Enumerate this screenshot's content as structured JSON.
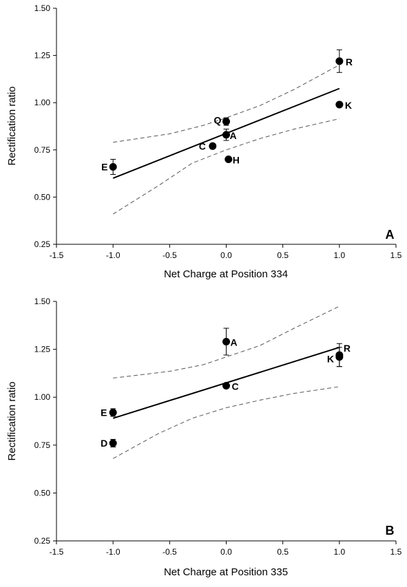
{
  "chart_data": [
    {
      "type": "scatter",
      "panel_label": "A",
      "xlabel": "Net Charge at Position 334",
      "ylabel": "Rectification ratio",
      "xlim": [
        -1.5,
        1.5
      ],
      "ylim": [
        0.25,
        1.5
      ],
      "x_ticks": [
        "-1.5",
        "-1.0",
        "-0.5",
        "0.0",
        "0.5",
        "1.0",
        "1.5"
      ],
      "y_ticks": [
        "0.25",
        "0.50",
        "0.75",
        "1.00",
        "1.25",
        "1.50"
      ],
      "points": [
        {
          "label": "E",
          "x": -1.0,
          "y": 0.66,
          "err": 0.04
        },
        {
          "label": "C",
          "x": -0.12,
          "y": 0.77,
          "err": 0
        },
        {
          "label": "Q",
          "x": 0.0,
          "y": 0.9,
          "err": 0.02
        },
        {
          "label": "A",
          "x": 0.0,
          "y": 0.83,
          "err": 0.03
        },
        {
          "label": "H",
          "x": 0.02,
          "y": 0.7,
          "err": 0
        },
        {
          "label": "K",
          "x": 1.0,
          "y": 0.99,
          "err": 0
        },
        {
          "label": "R",
          "x": 1.0,
          "y": 1.22,
          "err": 0.06
        }
      ],
      "fit_line": [
        [
          -1.0,
          0.6
        ],
        [
          1.0,
          1.075
        ]
      ],
      "ci_upper": [
        [
          -1.0,
          0.79
        ],
        [
          -0.5,
          0.835
        ],
        [
          -0.2,
          0.88
        ],
        [
          0.0,
          0.92
        ],
        [
          0.3,
          0.985
        ],
        [
          0.6,
          1.07
        ],
        [
          1.0,
          1.2
        ]
      ],
      "ci_lower": [
        [
          -1.0,
          0.41
        ],
        [
          -0.6,
          0.56
        ],
        [
          -0.3,
          0.68
        ],
        [
          0.0,
          0.75
        ],
        [
          0.3,
          0.81
        ],
        [
          0.6,
          0.86
        ],
        [
          1.0,
          0.915
        ]
      ],
      "grid": false
    },
    {
      "type": "scatter",
      "panel_label": "B",
      "xlabel": "Net Charge at Position 335",
      "ylabel": "Rectification ratio",
      "xlim": [
        -1.5,
        1.5
      ],
      "ylim": [
        0.25,
        1.5
      ],
      "x_ticks": [
        "-1.5",
        "-1.0",
        "-0.5",
        "0.0",
        "0.5",
        "1.0",
        "1.5"
      ],
      "y_ticks": [
        "0.25",
        "0.50",
        "0.75",
        "1.00",
        "1.25",
        "1.50"
      ],
      "points": [
        {
          "label": "E",
          "x": -1.0,
          "y": 0.92,
          "err": 0.02
        },
        {
          "label": "D",
          "x": -1.0,
          "y": 0.76,
          "err": 0.02
        },
        {
          "label": "A",
          "x": 0.0,
          "y": 1.29,
          "err": 0.07
        },
        {
          "label": "C",
          "x": 0.0,
          "y": 1.06,
          "err": 0
        },
        {
          "label": "R",
          "x": 1.0,
          "y": 1.22,
          "err": 0.06
        },
        {
          "label": "K",
          "x": 1.0,
          "y": 1.21,
          "err": 0.05
        }
      ],
      "fit_line": [
        [
          -1.0,
          0.89
        ],
        [
          1.0,
          1.26
        ]
      ],
      "ci_upper": [
        [
          -1.0,
          1.1
        ],
        [
          -0.5,
          1.135
        ],
        [
          -0.2,
          1.17
        ],
        [
          0.0,
          1.21
        ],
        [
          0.3,
          1.27
        ],
        [
          0.6,
          1.36
        ],
        [
          1.0,
          1.475
        ]
      ],
      "ci_lower": [
        [
          -1.0,
          0.68
        ],
        [
          -0.6,
          0.81
        ],
        [
          -0.3,
          0.89
        ],
        [
          0.0,
          0.945
        ],
        [
          0.3,
          0.985
        ],
        [
          0.6,
          1.02
        ],
        [
          1.0,
          1.055
        ]
      ],
      "grid": false
    }
  ]
}
